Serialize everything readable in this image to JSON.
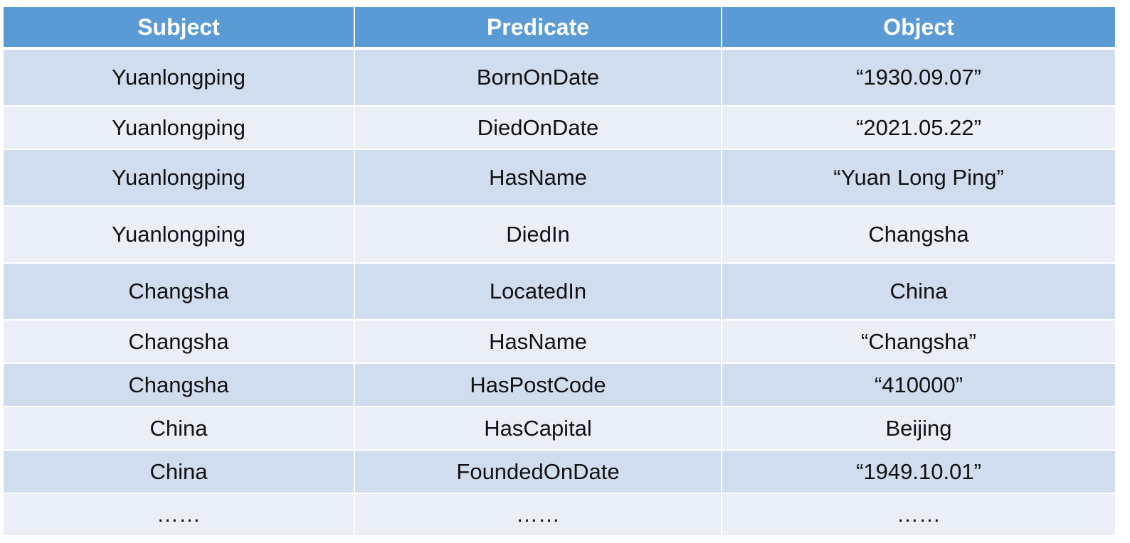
{
  "table": {
    "headers": [
      "Subject",
      "Predicate",
      "Object"
    ],
    "rows": [
      [
        "Yuanlongping",
        "BornOnDate",
        "“1930.09.07”"
      ],
      [
        "Yuanlongping",
        "DiedOnDate",
        "“2021.05.22”"
      ],
      [
        "Yuanlongping",
        "HasName",
        "“Yuan Long Ping”"
      ],
      [
        "Yuanlongping",
        "DiedIn",
        "Changsha"
      ],
      [
        "Changsha",
        "LocatedIn",
        "China"
      ],
      [
        "Changsha",
        "HasName",
        "“Changsha”"
      ],
      [
        "Changsha",
        "HasPostCode",
        "“410000”"
      ],
      [
        "China",
        "HasCapital",
        "Beijing"
      ],
      [
        "China",
        "FoundedOnDate",
        "“1949.10.01”"
      ],
      [
        "……",
        "……",
        "……"
      ]
    ]
  },
  "colors": {
    "header_bg": "#5b9bd5",
    "row_odd_bg": "#d0ddef",
    "row_even_bg": "#e9eef7"
  }
}
